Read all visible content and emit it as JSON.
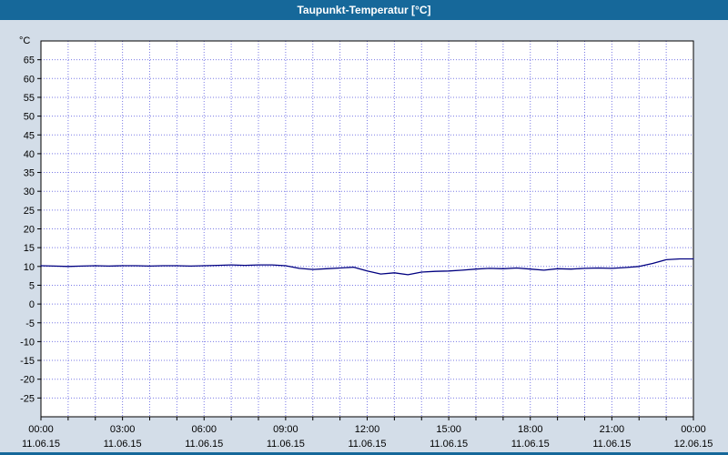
{
  "window": {
    "title": "Taupunkt-Temperatur [°C]"
  },
  "chart_data": {
    "type": "line",
    "title": "Taupunkt-Temperatur [°C]",
    "xlabel": "",
    "ylabel": "°C",
    "ylim": [
      -30,
      70
    ],
    "xlim_hours": [
      0,
      24
    ],
    "grid": {
      "on": true,
      "x_interval_hours": 1,
      "y_interval": 5
    },
    "legend": "none",
    "y_ticks": [
      65,
      60,
      55,
      50,
      45,
      40,
      35,
      30,
      25,
      20,
      15,
      10,
      5,
      0,
      -5,
      -10,
      -15,
      -20,
      -25
    ],
    "x_ticks": [
      {
        "hour": 0,
        "time": "00:00",
        "date": "11.06.15"
      },
      {
        "hour": 3,
        "time": "03:00",
        "date": "11.06.15"
      },
      {
        "hour": 6,
        "time": "06:00",
        "date": "11.06.15"
      },
      {
        "hour": 9,
        "time": "09:00",
        "date": "11.06.15"
      },
      {
        "hour": 12,
        "time": "12:00",
        "date": "11.06.15"
      },
      {
        "hour": 15,
        "time": "15:00",
        "date": "11.06.15"
      },
      {
        "hour": 18,
        "time": "18:00",
        "date": "11.06.15"
      },
      {
        "hour": 21,
        "time": "21:00",
        "date": "11.06.15"
      },
      {
        "hour": 24,
        "time": "00:00",
        "date": "12.06.15"
      }
    ],
    "series": [
      {
        "name": "Taupunkt-Temperatur",
        "color": "#000080",
        "x_hours": [
          0,
          0.5,
          1,
          1.5,
          2,
          2.5,
          3,
          3.5,
          4,
          4.5,
          5,
          5.5,
          6,
          6.5,
          7,
          7.5,
          8,
          8.5,
          9,
          9.5,
          10,
          10.5,
          11,
          11.5,
          12,
          12.5,
          13,
          13.5,
          14,
          14.5,
          15,
          15.5,
          16,
          16.5,
          17,
          17.5,
          18,
          18.5,
          19,
          19.5,
          20,
          20.5,
          21,
          21.5,
          22,
          22.5,
          23,
          23.5,
          24
        ],
        "values": [
          10.2,
          10.1,
          10.0,
          10.1,
          10.2,
          10.1,
          10.2,
          10.2,
          10.1,
          10.2,
          10.2,
          10.1,
          10.2,
          10.3,
          10.4,
          10.3,
          10.4,
          10.4,
          10.2,
          9.5,
          9.2,
          9.4,
          9.6,
          9.8,
          8.8,
          8.0,
          8.3,
          7.8,
          8.5,
          8.7,
          8.8,
          9.0,
          9.3,
          9.5,
          9.4,
          9.6,
          9.3,
          9.0,
          9.4,
          9.3,
          9.5,
          9.6,
          9.5,
          9.7,
          10.0,
          10.8,
          11.8,
          12.0,
          12.0
        ]
      }
    ],
    "colors": {
      "background": "#d3dde8",
      "plot_background": "#ffffff",
      "grid": "#7a7ae6",
      "axis": "#000000",
      "titlebar": "#16689a",
      "title_text": "#ffffff",
      "tick_text": "#000000"
    }
  }
}
